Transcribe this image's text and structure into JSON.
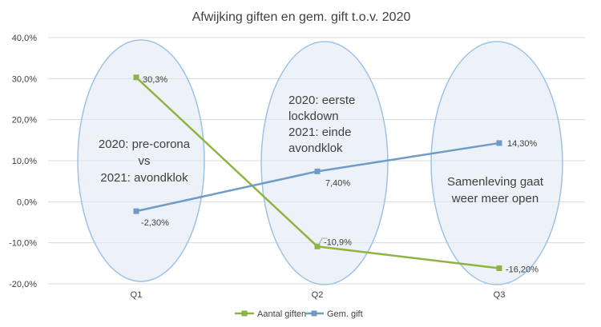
{
  "chart_data": {
    "type": "line",
    "title": "Afwijking giften en gem. gift t.o.v. 2020",
    "categories": [
      "Q1",
      "Q2",
      "Q3"
    ],
    "y_ticks": [
      "40,0%",
      "30,0%",
      "20,0%",
      "10,0%",
      "0,0%",
      "-10,0%",
      "-20,0%"
    ],
    "ylim": [
      -20,
      40
    ],
    "grid": true,
    "legend_position": "bottom",
    "series": [
      {
        "name": "Aantal giften",
        "color": "#8FB442",
        "values": [
          30.3,
          -10.9,
          -16.2
        ],
        "labels": [
          "30,3%",
          "-10,9%",
          "-16,20%"
        ]
      },
      {
        "name": "Gem. gift",
        "color": "#6F9BC6",
        "values": [
          -2.3,
          7.4,
          14.3
        ],
        "labels": [
          "-2,30%",
          "7,40%",
          "14,30%"
        ]
      }
    ],
    "annotations": [
      {
        "category": "Q1",
        "lines": [
          "2020: pre-corona",
          "vs",
          "2021: avondklok"
        ]
      },
      {
        "category": "Q2",
        "lines": [
          "2020: eerste",
          "lockdown",
          "2021: einde",
          "avondklok"
        ]
      },
      {
        "category": "Q3",
        "lines": [
          "Samenleving gaat",
          "weer meer open"
        ]
      }
    ],
    "ellipse_color": "#DCE8F3",
    "ellipse_stroke": "#9DC3E6"
  }
}
